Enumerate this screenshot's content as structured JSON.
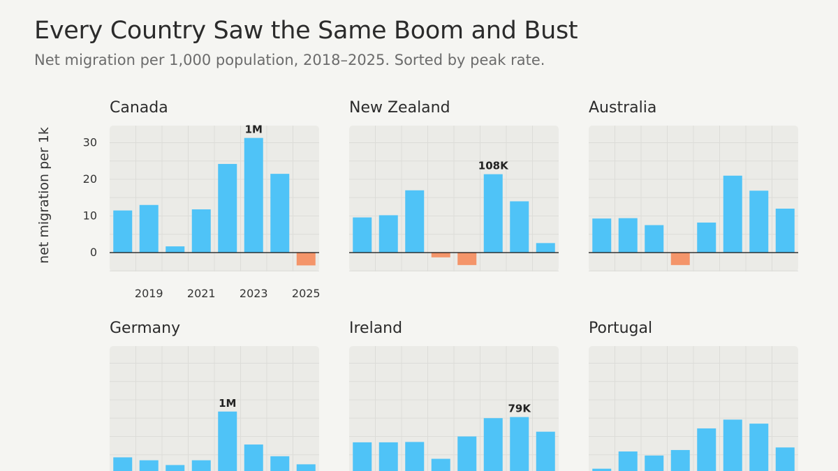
{
  "header": {
    "title": "Every Country Saw the Same Boom and Bust",
    "subtitle": "Net migration per 1,000 population, 2018–2025. Sorted by peak rate."
  },
  "y_axis_title": "net migration per 1k",
  "colors": {
    "positive": "#4fc3f7",
    "negative": "#f4956a",
    "panel_bg": "#ebebe7",
    "grid": "#dcdcd8",
    "baseline": "#111111"
  },
  "chart_data": {
    "type": "bar",
    "x": [
      2018,
      2019,
      2020,
      2021,
      2022,
      2023,
      2024,
      2025
    ],
    "x_tick_labels": [
      "2019",
      "2021",
      "2023",
      "2025"
    ],
    "ylim": [
      -4,
      33
    ],
    "y_ticks": [
      0,
      10,
      20,
      30
    ],
    "grid": true,
    "panels": [
      {
        "name": "Canada",
        "values": [
          11.5,
          13,
          1.7,
          11.8,
          24.2,
          31.3,
          21.5,
          -3.5
        ],
        "peak_label": "1M"
      },
      {
        "name": "New Zealand",
        "values": [
          9.6,
          10.2,
          17,
          -1.3,
          -3.4,
          21.4,
          14,
          2.6
        ],
        "peak_label": "108K"
      },
      {
        "name": "Australia",
        "values": [
          9.3,
          9.4,
          7.5,
          -3.4,
          8.2,
          21,
          16.9,
          12
        ]
      },
      {
        "name": "Germany",
        "values": [
          4.3,
          3.5,
          2.2,
          3.5,
          16.8,
          7.8,
          4.6,
          2.4
        ],
        "peak_label": "1M"
      },
      {
        "name": "Ireland",
        "values": [
          8.4,
          8.4,
          8.5,
          3.9,
          10,
          15,
          15.3,
          11.3
        ],
        "peak_label": "79K"
      },
      {
        "name": "Portugal",
        "values": [
          1.2,
          5.9,
          4.8,
          6.3,
          12.2,
          14.6,
          13.5,
          7
        ]
      }
    ]
  }
}
